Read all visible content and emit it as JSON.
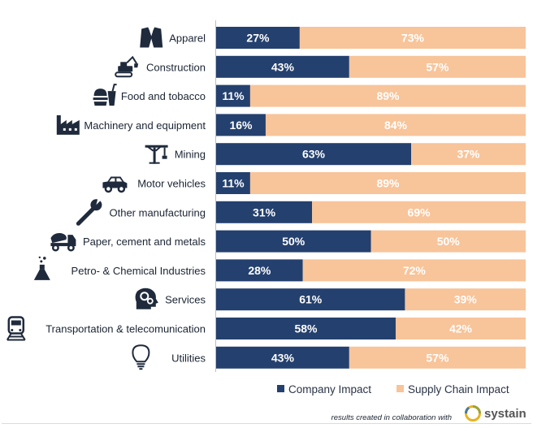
{
  "chart_data": {
    "type": "bar",
    "stacked": true,
    "orientation": "horizontal",
    "categories": [
      "Apparel",
      "Construction",
      "Food and tobacco",
      "Machinery and equipment",
      "Mining",
      "Motor vehicles",
      "Other manufacturing",
      "Paper, cement and metals",
      "Petro- & Chemical Industries",
      "Services",
      "Transportation & telecomunication",
      "Utilities"
    ],
    "series": [
      {
        "name": "Company Impact",
        "color": "#24406e",
        "values": [
          27,
          43,
          11,
          16,
          63,
          11,
          31,
          50,
          28,
          61,
          58,
          43
        ]
      },
      {
        "name": "Supply Chain Impact",
        "color": "#f8c49a",
        "values": [
          73,
          57,
          89,
          84,
          37,
          89,
          69,
          50,
          72,
          39,
          42,
          57
        ]
      }
    ],
    "value_suffix": "%",
    "xlim": [
      0,
      100
    ],
    "legend": "bottom-right",
    "grid": false,
    "icons": [
      "suit-jacket-icon",
      "excavator-icon",
      "food-drink-icon",
      "factory-icon",
      "mining-crane-icon",
      "car-icon",
      "wrench-icon",
      "cement-truck-icon",
      "flask-icon",
      "head-gears-icon",
      "train-icon",
      "lightbulb-icon"
    ]
  },
  "footer": {
    "credit": "results created in collaboration with",
    "brand": "systain",
    "brand_icon": "systain-logo-icon"
  }
}
